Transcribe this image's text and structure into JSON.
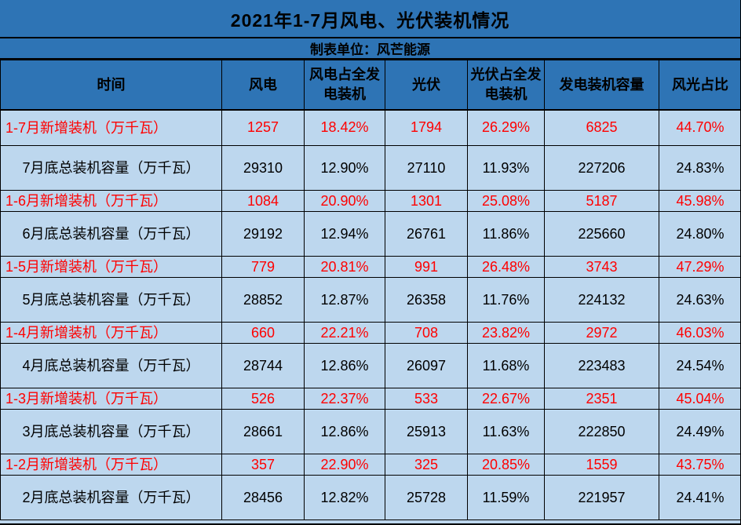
{
  "colors": {
    "header_bg": "#2E74B5",
    "body_bg": "#BDD7EE",
    "new_row_text": "#FF0000",
    "total_row_text": "#000000",
    "border": "#000000"
  },
  "chart_data": {
    "type": "table",
    "title": "2021年1-7月风电、光伏装机情况",
    "unit_note": "制表单位：风芒能源",
    "columns": [
      "时间",
      "风电",
      "风电占全发电装机",
      "光伏",
      "光伏占全发电装机",
      "发电装机容量",
      "风光占比"
    ],
    "rows": [
      {
        "kind": "new",
        "cells": [
          "1-7月新增装机（万千瓦）",
          "1257",
          "18.42%",
          "1794",
          "26.29%",
          "6825",
          "44.70%"
        ]
      },
      {
        "kind": "total",
        "cells": [
          "7月底总装机容量（万千瓦）",
          "29310",
          "12.90%",
          "27110",
          "11.93%",
          "227206",
          "24.83%"
        ]
      },
      {
        "kind": "new",
        "cells": [
          "1-6月新增装机（万千瓦）",
          "1084",
          "20.90%",
          "1301",
          "25.08%",
          "5187",
          "45.98%"
        ]
      },
      {
        "kind": "total",
        "cells": [
          "6月底总装机容量（万千瓦）",
          "29192",
          "12.94%",
          "26761",
          "11.86%",
          "225660",
          "24.80%"
        ]
      },
      {
        "kind": "new",
        "cells": [
          "1-5月新增装机（万千瓦）",
          "779",
          "20.81%",
          "991",
          "26.48%",
          "3743",
          "47.29%"
        ]
      },
      {
        "kind": "total",
        "cells": [
          "5月底总装机容量（万千瓦）",
          "28852",
          "12.87%",
          "26358",
          "11.76%",
          "224132",
          "24.63%"
        ]
      },
      {
        "kind": "new",
        "cells": [
          "1-4月新增装机（万千瓦）",
          "660",
          "22.21%",
          "708",
          "23.82%",
          "2972",
          "46.03%"
        ]
      },
      {
        "kind": "total",
        "cells": [
          "4月底总装机容量（万千瓦）",
          "28744",
          "12.86%",
          "26097",
          "11.68%",
          "223483",
          "24.54%"
        ]
      },
      {
        "kind": "new",
        "cells": [
          "1-3月新增装机（万千瓦）",
          "526",
          "22.37%",
          "533",
          "22.67%",
          "2351",
          "45.04%"
        ]
      },
      {
        "kind": "total",
        "cells": [
          "3月底总装机容量（万千瓦）",
          "28661",
          "12.86%",
          "25913",
          "11.63%",
          "222850",
          "24.49%"
        ]
      },
      {
        "kind": "new",
        "cells": [
          "1-2月新增装机（万千瓦）",
          "357",
          "22.90%",
          "325",
          "20.85%",
          "1559",
          "43.75%"
        ]
      },
      {
        "kind": "total",
        "cells": [
          "2月底总装机容量（万千瓦）",
          "28456",
          "12.82%",
          "25728",
          "11.59%",
          "221957",
          "24.41%"
        ]
      }
    ]
  }
}
